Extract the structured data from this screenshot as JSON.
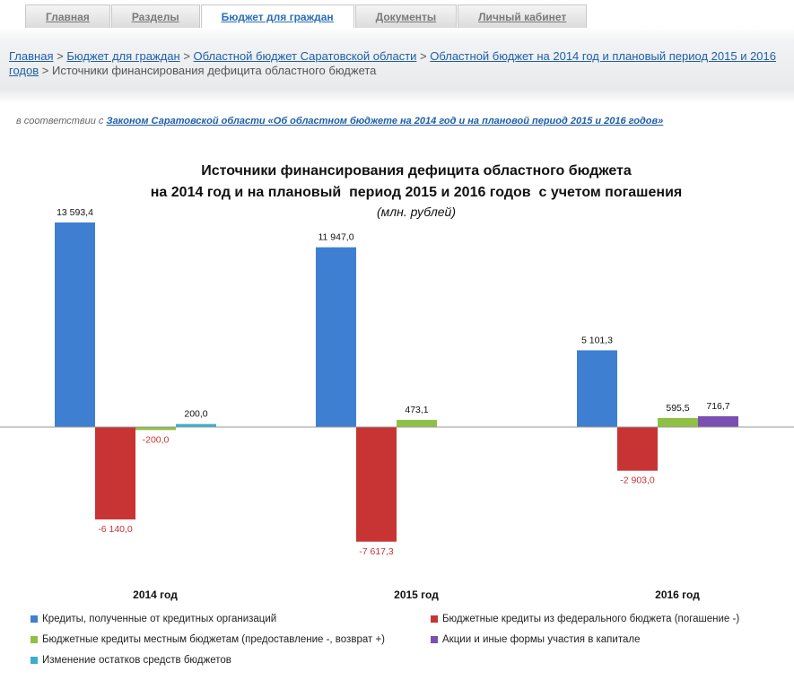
{
  "nav": {
    "tabs": [
      {
        "label": "Главная",
        "active": false
      },
      {
        "label": "Разделы",
        "active": false
      },
      {
        "label": "Бюджет для граждан",
        "active": true
      },
      {
        "label": "Документы",
        "active": false
      },
      {
        "label": "Личный кабинет",
        "active": false
      }
    ]
  },
  "breadcrumb": {
    "links": [
      "Главная",
      "Бюджет для граждан",
      "Областной бюджет Саратовской области",
      "Областной бюджет на 2014 год и плановый период 2015 и 2016 годов"
    ],
    "separator": ">",
    "current": "Источники финансирования дефицита областного бюджета"
  },
  "law_note": {
    "prefix": "в соответствии с",
    "link": "Законом Саратовской области «Об областном бюджете на 2014 год и на плановой период 2015 и 2016 годов»"
  },
  "chart_data": {
    "type": "bar",
    "title": "Источники финансирования дефицита областного бюджета",
    "subtitle": "на 2014 год и на плановый  период 2015 и 2016 годов  с учетом погашения",
    "unit": "(млн. рублей)",
    "categories": [
      "2014 год",
      "2015 год",
      "2016 год"
    ],
    "series": [
      {
        "name": "Кредиты, полученные от кредитных организаций",
        "color": "#3f7fd2",
        "values": [
          13593.4,
          11947.0,
          5101.3
        ],
        "labels": [
          "13 593,4",
          "11 947,0",
          "5 101,3"
        ]
      },
      {
        "name": "Бюджетные кредиты из федерального бюджета (погашение -)",
        "color": "#c83434",
        "values": [
          -6140.0,
          -7617.3,
          -2903.0
        ],
        "labels": [
          "-6 140,0",
          "-7 617,3",
          "-2 903,0"
        ]
      },
      {
        "name": "Бюджетные кредиты местным бюджетам (предоставление -, возврат +)",
        "color": "#8fc045",
        "values": [
          -200.0,
          473.1,
          595.5
        ],
        "labels": [
          "-200,0",
          "473,1",
          "595,5"
        ]
      },
      {
        "name": "Акции и иные формы участия в капитале",
        "color": "#7a4fb0",
        "values": [
          null,
          null,
          716.7
        ],
        "labels": [
          "",
          "",
          "716,7"
        ]
      },
      {
        "name": "Изменение остатков средств бюджетов",
        "color": "#3aaed0",
        "values": [
          200.0,
          null,
          null
        ],
        "labels": [
          "200,0",
          "",
          ""
        ]
      }
    ],
    "legend_position": "bottom",
    "grid": false
  }
}
